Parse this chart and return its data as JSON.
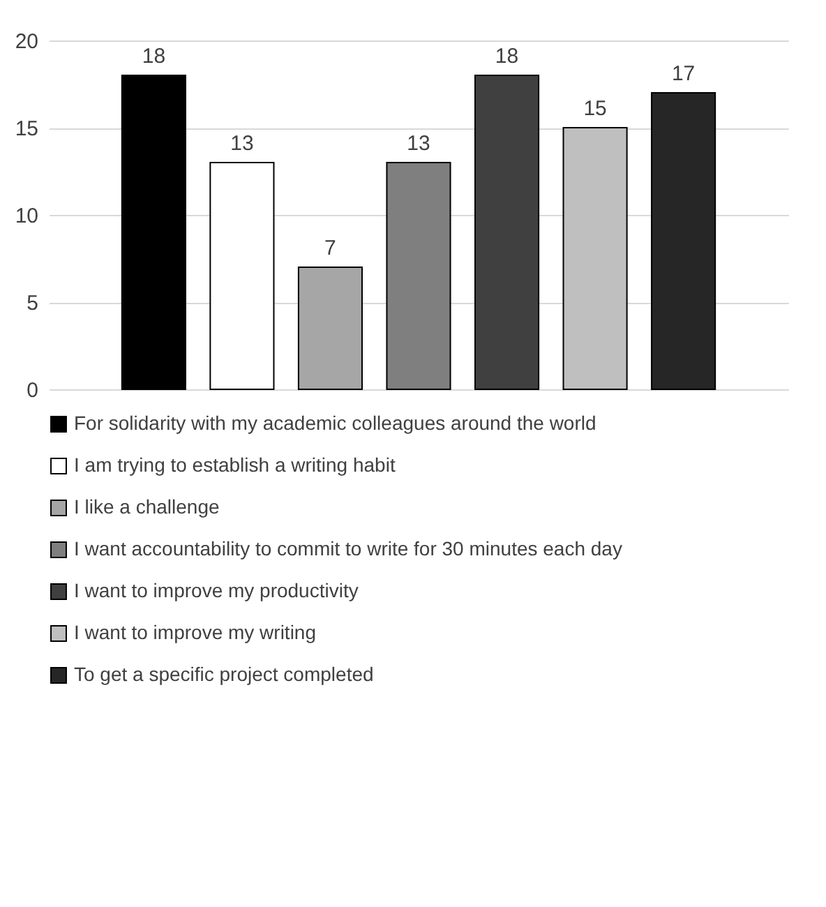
{
  "chart_data": {
    "type": "bar",
    "categories": [
      null
    ],
    "ylim": [
      0,
      20
    ],
    "yticks": [
      0,
      5,
      10,
      15,
      20
    ],
    "grid": "y",
    "legend": "bottom",
    "data_labels": true,
    "series": [
      {
        "name": "For solidarity with my academic colleagues around the world",
        "color": "#000000",
        "values": [
          18
        ]
      },
      {
        "name": "I am trying to establish a writing habit",
        "color": "#ffffff",
        "values": [
          13
        ]
      },
      {
        "name": "I like a challenge",
        "color": "#a6a6a6",
        "values": [
          7
        ]
      },
      {
        "name": "I want accountability to commit to write for 30 minutes each day",
        "color": "#7f7f7f",
        "values": [
          13
        ]
      },
      {
        "name": "I want to improve my productivity",
        "color": "#404040",
        "values": [
          18
        ]
      },
      {
        "name": "I want to improve my writing",
        "color": "#bfbfbf",
        "values": [
          15
        ]
      },
      {
        "name": "To get a specific project completed",
        "color": "#262626",
        "values": [
          17
        ]
      }
    ]
  }
}
